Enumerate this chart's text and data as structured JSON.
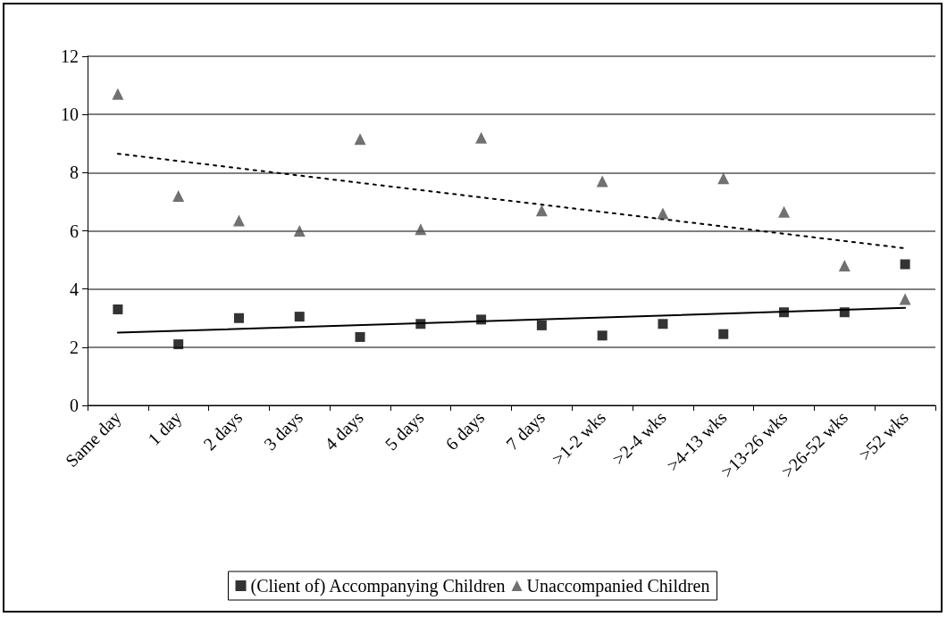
{
  "chart_data": {
    "type": "scatter",
    "categories": [
      "Same day",
      "1 day",
      "2 days",
      "3 days",
      "4 days",
      "5 days",
      "6 days",
      "7 days",
      ">1-2 wks",
      ">2-4 wks",
      ">4-13 wks",
      ">13-26 wks",
      ">26-52 wks",
      ">52 wks"
    ],
    "series": [
      {
        "name": "(Client of) Accompanying Children",
        "color": "#000000",
        "marker": "square",
        "values": [
          3.3,
          2.1,
          3.0,
          3.05,
          2.35,
          2.8,
          2.95,
          2.75,
          2.4,
          2.8,
          2.45,
          3.2,
          3.2,
          4.85
        ]
      },
      {
        "name": "Unaccompanied Children",
        "color": "#4d4d4d",
        "marker": "triangle",
        "values": [
          10.7,
          7.2,
          6.35,
          6.0,
          9.15,
          6.05,
          9.2,
          6.7,
          7.7,
          6.6,
          7.8,
          6.65,
          4.8,
          3.65
        ]
      },
      {
        "type": "line",
        "color": "#000000",
        "line_style": "solid",
        "marker": "none",
        "x": [
          "Same day",
          ">52 wks"
        ],
        "values": [
          2.5,
          3.35
        ]
      },
      {
        "type": "line",
        "color": "#000000",
        "line_style": "dotted",
        "marker": "none",
        "x": [
          "Same day",
          ">52 wks"
        ],
        "values": [
          8.65,
          5.4
        ]
      }
    ],
    "ylim": [
      0,
      12
    ],
    "yticks": [
      0,
      2,
      4,
      6,
      8,
      10,
      12
    ],
    "grid": "y",
    "legend": "bottom"
  }
}
